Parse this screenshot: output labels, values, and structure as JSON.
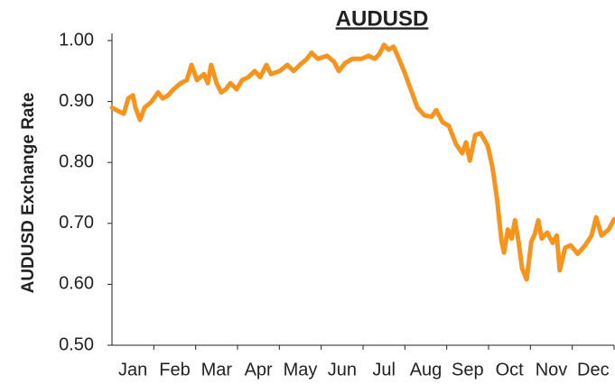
{
  "chart_data": {
    "type": "line",
    "title": "AUDUSD",
    "ylabel": "AUDUSD Exchange Rate",
    "categories": [
      "Jan",
      "Feb",
      "Mar",
      "Apr",
      "May",
      "Jun",
      "Jul",
      "Aug",
      "Sep",
      "Oct",
      "Nov",
      "Dec"
    ],
    "xlim": [
      0,
      12
    ],
    "x": [
      0,
      0.13,
      0.28,
      0.39,
      0.5,
      0.56,
      0.67,
      0.78,
      0.95,
      1.1,
      1.21,
      1.34,
      1.47,
      1.64,
      1.79,
      1.9,
      2.03,
      2.2,
      2.29,
      2.37,
      2.5,
      2.61,
      2.72,
      2.83,
      2.98,
      3.11,
      3.26,
      3.41,
      3.54,
      3.69,
      3.8,
      4.01,
      4.19,
      4.34,
      4.49,
      4.66,
      4.77,
      4.92,
      5.14,
      5.31,
      5.42,
      5.57,
      5.74,
      5.96,
      6.13,
      6.28,
      6.39,
      6.5,
      6.61,
      6.73,
      6.86,
      6.99,
      7.14,
      7.3,
      7.47,
      7.64,
      7.75,
      7.9,
      8.05,
      8.22,
      8.37,
      8.46,
      8.55,
      8.68,
      8.81,
      8.98,
      9.09,
      9.2,
      9.31,
      9.37,
      9.46,
      9.55,
      9.63,
      9.72,
      9.8,
      9.91,
      10.02,
      10.1,
      10.19,
      10.27,
      10.4,
      10.53,
      10.63,
      10.7,
      10.83,
      10.96,
      11.13,
      11.31,
      11.46,
      11.57,
      11.7,
      11.87,
      12
    ],
    "series": [
      {
        "name": "AUDUSD",
        "color": "#f7941d",
        "values": [
          0.89,
          0.885,
          0.88,
          0.905,
          0.91,
          0.89,
          0.87,
          0.89,
          0.9,
          0.915,
          0.905,
          0.91,
          0.92,
          0.93,
          0.935,
          0.96,
          0.935,
          0.945,
          0.93,
          0.96,
          0.93,
          0.915,
          0.92,
          0.93,
          0.92,
          0.935,
          0.94,
          0.95,
          0.94,
          0.96,
          0.945,
          0.95,
          0.96,
          0.95,
          0.96,
          0.97,
          0.98,
          0.97,
          0.975,
          0.965,
          0.95,
          0.963,
          0.97,
          0.97,
          0.975,
          0.97,
          0.978,
          0.993,
          0.985,
          0.99,
          0.97,
          0.948,
          0.92,
          0.89,
          0.877,
          0.875,
          0.886,
          0.866,
          0.86,
          0.83,
          0.815,
          0.833,
          0.803,
          0.845,
          0.848,
          0.827,
          0.793,
          0.741,
          0.67,
          0.652,
          0.69,
          0.675,
          0.705,
          0.668,
          0.626,
          0.608,
          0.67,
          0.682,
          0.705,
          0.675,
          0.685,
          0.668,
          0.68,
          0.623,
          0.66,
          0.664,
          0.65,
          0.664,
          0.68,
          0.71,
          0.68,
          0.69,
          0.707
        ]
      }
    ],
    "ylim": [
      0.5,
      1.0
    ],
    "yticks": [
      {
        "value": 0.5,
        "label": "0.50"
      },
      {
        "value": 0.6,
        "label": "0.60"
      },
      {
        "value": 0.7,
        "label": "0.70"
      },
      {
        "value": 0.8,
        "label": "0.80"
      },
      {
        "value": 0.9,
        "label": "0.90"
      },
      {
        "value": 1.0,
        "label": "1.00"
      }
    ],
    "grid": false
  }
}
